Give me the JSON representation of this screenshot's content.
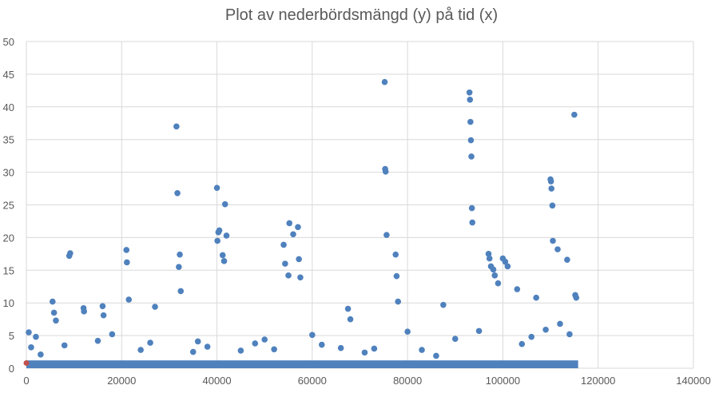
{
  "chart_data": {
    "type": "scatter",
    "title": "Plot av nederbördsmängd (y) på tid (x)",
    "xlim": [
      0,
      140000
    ],
    "ylim": [
      0,
      50
    ],
    "x_ticks": [
      0,
      20000,
      40000,
      60000,
      80000,
      100000,
      120000,
      140000
    ],
    "y_ticks": [
      0,
      5,
      10,
      15,
      20,
      25,
      30,
      35,
      40,
      45,
      50
    ],
    "grid": true,
    "legend": "none",
    "colors": {
      "series": "#4f81bd",
      "highlight": "#c0504d",
      "grid": "#d9d9d9",
      "axis_text": "#595959"
    },
    "series": [
      {
        "x": [
          500,
          1000,
          2000,
          3000,
          5500,
          5800,
          6200,
          9000,
          9200,
          12000,
          12100,
          16000,
          16200,
          18000,
          21000,
          21100,
          21500,
          27000,
          31500,
          31700,
          32000,
          32200,
          32400,
          40000,
          40300,
          40500,
          41200,
          41500,
          41700,
          40100,
          42000,
          54000,
          54300,
          55000,
          55200,
          56000,
          57000,
          57200,
          57500,
          67500,
          68000,
          75200,
          75300,
          75400,
          75600,
          77500,
          77700,
          78000,
          87500,
          93000,
          93100,
          93200,
          93300,
          93400,
          93500,
          93600,
          97000,
          97200,
          97500,
          98000,
          98300,
          99000,
          100000,
          100500,
          101000,
          103000,
          107000,
          110000,
          110100,
          110200,
          110400,
          110500,
          111500,
          113500,
          115000,
          115200,
          115400,
          8000,
          15000,
          24000,
          26000,
          35000,
          36000,
          38000,
          45000,
          48000,
          50000,
          52000,
          60000,
          62000,
          66000,
          71000,
          73000,
          80000,
          83000,
          86000,
          90000,
          95000,
          104000,
          106000,
          109000,
          112000,
          114000
        ],
        "y": [
          5.5,
          3.2,
          4.8,
          2.1,
          10.2,
          8.5,
          7.3,
          17.2,
          17.6,
          9.2,
          8.7,
          9.5,
          8.1,
          5.2,
          18.1,
          16.2,
          10.5,
          9.4,
          37.0,
          26.8,
          15.5,
          17.4,
          11.8,
          27.6,
          20.8,
          21.1,
          17.3,
          16.4,
          25.1,
          19.5,
          20.3,
          18.9,
          16.0,
          14.2,
          22.2,
          20.5,
          21.6,
          16.7,
          13.9,
          9.1,
          7.5,
          43.8,
          30.5,
          30.1,
          20.4,
          17.4,
          14.1,
          10.2,
          9.7,
          42.2,
          41.1,
          37.7,
          34.9,
          32.4,
          24.5,
          22.3,
          17.5,
          16.8,
          15.6,
          15.1,
          14.2,
          13.0,
          16.8,
          16.3,
          15.6,
          12.1,
          10.8,
          28.9,
          28.6,
          27.5,
          24.9,
          19.5,
          18.2,
          16.6,
          38.8,
          11.2,
          10.8,
          3.5,
          4.2,
          2.8,
          3.9,
          2.5,
          4.1,
          3.3,
          2.7,
          3.8,
          4.4,
          2.9,
          5.1,
          3.6,
          3.1,
          2.4,
          3.0,
          5.6,
          2.8,
          1.9,
          4.5,
          5.7,
          3.7,
          4.8,
          5.9,
          6.8,
          5.2
        ]
      },
      {
        "x": [
          0
        ],
        "y": [
          0.8
        ]
      }
    ]
  }
}
